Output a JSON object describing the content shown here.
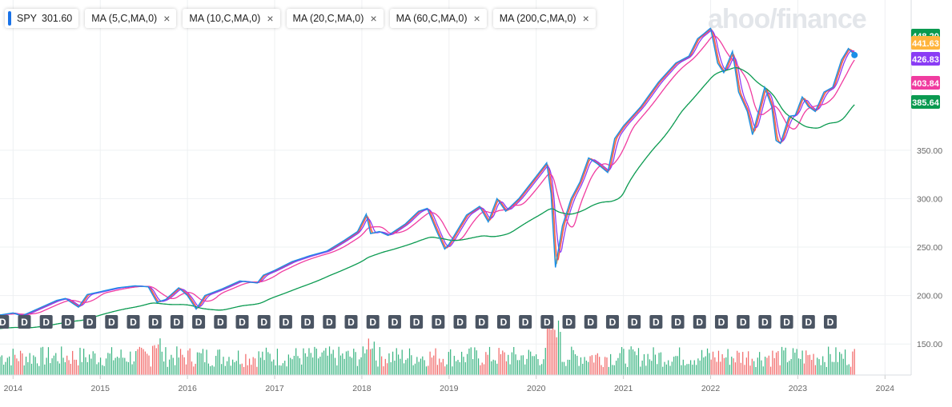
{
  "toolbar": {
    "symbol": "SPY",
    "price": "301.60",
    "indicators": [
      {
        "label": "MA (5,C,MA,0)"
      },
      {
        "label": "MA (10,C,MA,0)"
      },
      {
        "label": "MA (20,C,MA,0)"
      },
      {
        "label": "MA (60,C,MA,0)"
      },
      {
        "label": "MA (200,C,MA,0)"
      }
    ],
    "close_glyph": "×"
  },
  "watermark": "ahoo/finance",
  "chart_data": {
    "type": "line",
    "xlim": [
      2013.85,
      2024.3
    ],
    "ylim": [
      118,
      505
    ],
    "y_ticks": [
      150,
      200,
      250,
      300,
      350
    ],
    "y_tick_labels": [
      "150.00",
      "200.00",
      "250.00",
      "300.00",
      "350.00"
    ],
    "x_ticks": [
      2014,
      2015,
      2016,
      2017,
      2018,
      2019,
      2020,
      2021,
      2022,
      2023,
      2024
    ],
    "x_tick_labels": [
      "2014",
      "2015",
      "2016",
      "2017",
      "2018",
      "2019",
      "2020",
      "2021",
      "2022",
      "2023",
      "2024"
    ],
    "price_series": {
      "name": "SPY",
      "color": "#1a8fe8",
      "points": [
        [
          2013.85,
          180
        ],
        [
          2014.0,
          182
        ],
        [
          2014.1,
          179
        ],
        [
          2014.3,
          187
        ],
        [
          2014.5,
          195
        ],
        [
          2014.6,
          197
        ],
        [
          2014.75,
          188
        ],
        [
          2014.85,
          201
        ],
        [
          2015.0,
          204
        ],
        [
          2015.2,
          208
        ],
        [
          2015.4,
          210
        ],
        [
          2015.55,
          209
        ],
        [
          2015.65,
          193
        ],
        [
          2015.75,
          196
        ],
        [
          2015.9,
          208
        ],
        [
          2016.0,
          200
        ],
        [
          2016.1,
          186
        ],
        [
          2016.2,
          200
        ],
        [
          2016.4,
          207
        ],
        [
          2016.6,
          215
        ],
        [
          2016.8,
          213
        ],
        [
          2016.87,
          221
        ],
        [
          2017.0,
          226
        ],
        [
          2017.2,
          235
        ],
        [
          2017.4,
          241
        ],
        [
          2017.6,
          246
        ],
        [
          2017.8,
          257
        ],
        [
          2017.95,
          266
        ],
        [
          2018.05,
          284
        ],
        [
          2018.1,
          264
        ],
        [
          2018.2,
          266
        ],
        [
          2018.3,
          262
        ],
        [
          2018.5,
          274
        ],
        [
          2018.65,
          287
        ],
        [
          2018.75,
          290
        ],
        [
          2018.85,
          268
        ],
        [
          2018.95,
          248
        ],
        [
          2019.0,
          253
        ],
        [
          2019.2,
          283
        ],
        [
          2019.35,
          292
        ],
        [
          2019.45,
          276
        ],
        [
          2019.55,
          300
        ],
        [
          2019.65,
          287
        ],
        [
          2019.8,
          300
        ],
        [
          2020.0,
          323
        ],
        [
          2020.12,
          337
        ],
        [
          2020.17,
          305
        ],
        [
          2020.22,
          229
        ],
        [
          2020.3,
          272
        ],
        [
          2020.4,
          300
        ],
        [
          2020.5,
          317
        ],
        [
          2020.6,
          342
        ],
        [
          2020.7,
          336
        ],
        [
          2020.82,
          327
        ],
        [
          2020.9,
          362
        ],
        [
          2021.0,
          375
        ],
        [
          2021.2,
          395
        ],
        [
          2021.4,
          420
        ],
        [
          2021.6,
          440
        ],
        [
          2021.75,
          447
        ],
        [
          2021.85,
          465
        ],
        [
          2021.92,
          470
        ],
        [
          2022.0,
          476
        ],
        [
          2022.08,
          440
        ],
        [
          2022.15,
          430
        ],
        [
          2022.25,
          452
        ],
        [
          2022.32,
          410
        ],
        [
          2022.42,
          390
        ],
        [
          2022.48,
          366
        ],
        [
          2022.55,
          390
        ],
        [
          2022.62,
          415
        ],
        [
          2022.7,
          395
        ],
        [
          2022.75,
          360
        ],
        [
          2022.8,
          357
        ],
        [
          2022.9,
          385
        ],
        [
          2022.97,
          386
        ],
        [
          2023.05,
          405
        ],
        [
          2023.12,
          395
        ],
        [
          2023.2,
          390
        ],
        [
          2023.3,
          410
        ],
        [
          2023.4,
          415
        ],
        [
          2023.5,
          443
        ],
        [
          2023.58,
          455
        ],
        [
          2023.65,
          448.2
        ]
      ]
    },
    "moving_averages": [
      {
        "name": "MA (5,C,MA,0)",
        "color": "#ffb43d",
        "period_years": 0.02
      },
      {
        "name": "MA (10,C,MA,0)",
        "color": "#ff4d4d",
        "period_years": 0.04
      },
      {
        "name": "MA (20,C,MA,0)",
        "color": "#8a3cf5",
        "period_years": 0.08
      },
      {
        "name": "MA (60,C,MA,0)",
        "color": "#f03ca0",
        "period_years": 0.24
      },
      {
        "name": "MA (200,C,MA,0)",
        "color": "#0a9a50",
        "period_years": 0.8
      }
    ],
    "last_value_labels": [
      {
        "value": "448.20",
        "price": 448.2,
        "color": "#0a9a50"
      },
      {
        "value": "441.63",
        "price": 441.6,
        "color": "#ffb43d"
      },
      {
        "value": "426.83",
        "price": 426.8,
        "color": "#8a3cf5"
      },
      {
        "value": "403.84",
        "price": 403.8,
        "color": "#f03ca0"
      },
      {
        "value": "385.64",
        "price": 385.6,
        "color": "#0a9a50"
      }
    ],
    "dividend_marker": "D",
    "dividend_count": 39,
    "volume": {
      "bar_count": 460,
      "up_color": "#13a669",
      "down_color": "#ef4a4a"
    }
  }
}
